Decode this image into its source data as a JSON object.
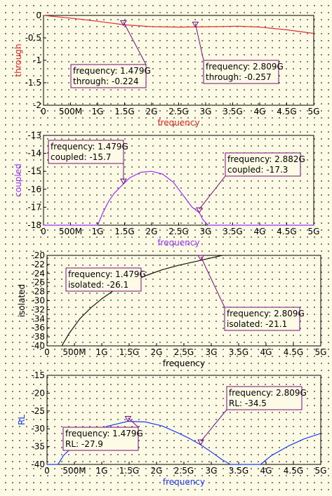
{
  "chart_data": [
    {
      "type": "line",
      "xlabel": "frequency",
      "ylabel": "through",
      "xlabel_color": "#e02020",
      "ylabel_color": "#e02020",
      "series_color": "#e03030",
      "xlim": [
        0,
        5
      ],
      "ylim": [
        -2,
        0
      ],
      "xticks": [
        0,
        0.5,
        1,
        1.5,
        2,
        2.5,
        3,
        3.5,
        4,
        4.5,
        5
      ],
      "xtick_labels": [
        "0",
        "500M",
        "1G",
        "1.5G",
        "2G",
        "2.5G",
        "3G",
        "3.5G",
        "4G",
        "4.5G",
        "5G"
      ],
      "yticks": [
        0,
        -0.5,
        -1,
        -1.5,
        -2
      ],
      "ytick_labels": [
        "0",
        "-0.5",
        "-1",
        "-1.5",
        "-2"
      ],
      "series": [
        {
          "x": [
            0,
            0.5,
            1,
            1.5,
            2,
            2.5,
            2.809,
            3.2,
            3.6,
            4,
            4.5,
            5
          ],
          "y": [
            0,
            -0.06,
            -0.13,
            -0.21,
            -0.25,
            -0.26,
            -0.257,
            -0.25,
            -0.24,
            -0.26,
            -0.32,
            -0.4
          ]
        }
      ],
      "markers": [
        {
          "x": 1.479,
          "y": -0.224,
          "lines": [
            "frequency: 1.479G",
            "through: -0.224"
          ]
        },
        {
          "x": 2.809,
          "y": -0.257,
          "lines": [
            "frequency: 2.809G",
            "through: -0.257"
          ]
        }
      ]
    },
    {
      "type": "line",
      "xlabel": "frequency",
      "ylabel": "coupled",
      "xlabel_color": "#9b30ff",
      "ylabel_color": "#9b30ff",
      "series_color": "#9b30ff",
      "xlim": [
        0,
        5
      ],
      "ylim": [
        -18,
        -13
      ],
      "xticks": [
        0,
        0.5,
        1,
        1.5,
        2,
        2.5,
        3,
        3.5,
        4,
        4.5,
        5
      ],
      "xtick_labels": [
        "0",
        "500M",
        "1G",
        "1.5G",
        "2G",
        "2.5G",
        "3G",
        "3.5G",
        "4G",
        "4.5G",
        "5G"
      ],
      "yticks": [
        -13,
        -14,
        -15,
        -16,
        -17,
        -18
      ],
      "ytick_labels": [
        "-13",
        "-14",
        "-15",
        "-16",
        "-17",
        "-18"
      ],
      "series": [
        {
          "x": [
            0,
            1.0,
            1.1,
            1.2,
            1.3,
            1.479,
            1.6,
            1.8,
            2.0,
            2.2,
            2.4,
            2.6,
            2.75,
            2.882,
            2.95,
            3.05,
            5
          ],
          "y": [
            -18,
            -18,
            -17.3,
            -16.7,
            -16.25,
            -15.7,
            -15.35,
            -15.05,
            -15.0,
            -15.15,
            -15.6,
            -16.4,
            -17.0,
            -17.3,
            -17.7,
            -18,
            -18
          ]
        }
      ],
      "markers": [
        {
          "x": 1.479,
          "y": -15.7,
          "lines": [
            "frequency: 1.479G",
            "coupled: -15.7"
          ]
        },
        {
          "x": 2.882,
          "y": -17.3,
          "lines": [
            "frequency: 2.882G",
            "coupled: -17.3"
          ]
        }
      ]
    },
    {
      "type": "line",
      "xlabel": "frequency",
      "ylabel": "isolated",
      "xlabel_color": "#000000",
      "ylabel_color": "#000000",
      "series_color": "#111111",
      "xlim": [
        0,
        5
      ],
      "ylim": [
        -40,
        -20
      ],
      "xticks": [
        0,
        0.5,
        1,
        1.5,
        2,
        2.5,
        3,
        3.5,
        4,
        4.5,
        5
      ],
      "xtick_labels": [
        "0",
        "500M",
        "1G",
        "1.5G",
        "2G",
        "2.5G",
        "3G",
        "3.5G",
        "4G",
        "4.5G",
        "5G"
      ],
      "yticks": [
        -20,
        -22,
        -24,
        -26,
        -28,
        -30,
        -32,
        -34,
        -36,
        -38,
        -40
      ],
      "ytick_labels": [
        "-20",
        "-22",
        "-24",
        "-26",
        "-28",
        "-30",
        "-32",
        "-34",
        "-36",
        "-38",
        "-40"
      ],
      "series": [
        {
          "x": [
            0.27,
            0.4,
            0.6,
            0.8,
            1.0,
            1.2,
            1.479,
            1.8,
            2.1,
            2.4,
            2.809,
            3.2
          ],
          "y": [
            -40,
            -37.3,
            -34.0,
            -31.6,
            -29.6,
            -27.9,
            -26.1,
            -24.5,
            -23.2,
            -22.2,
            -21.1,
            -20.0
          ]
        }
      ],
      "markers": [
        {
          "x": 1.479,
          "y": -26.1,
          "lines": [
            "frequency: 1.479G",
            "isolated: -26.1"
          ]
        },
        {
          "x": 2.809,
          "y": -21.1,
          "lines": [
            "frequency: 2.809G",
            "isolated: -21.1"
          ]
        }
      ]
    },
    {
      "type": "line",
      "xlabel": "frequency",
      "ylabel": "RL",
      "xlabel_color": "#1a3cff",
      "ylabel_color": "#1a3cff",
      "series_color": "#1a3cff",
      "xlim": [
        0,
        5
      ],
      "ylim": [
        -40,
        -15
      ],
      "xticks": [
        0,
        0.5,
        1,
        1.5,
        2,
        2.5,
        3,
        3.5,
        4,
        4.5,
        5
      ],
      "xtick_labels": [
        "0",
        "500M",
        "1G",
        "1.5G",
        "2G",
        "2.5G",
        "3G",
        "3.5G",
        "4G",
        "4.5G",
        "5G"
      ],
      "yticks": [
        -15,
        -20,
        -25,
        -30,
        -35,
        -40
      ],
      "ytick_labels": [
        "-15",
        "-20",
        "-25",
        "-30",
        "-35",
        "-40"
      ],
      "series": [
        {
          "x": [
            0,
            0.2,
            0.3,
            0.5,
            0.8,
            1.1,
            1.479,
            1.8,
            2.1,
            2.4,
            2.6,
            2.809,
            3.0,
            3.2,
            3.35,
            3.9,
            4.1,
            4.4,
            4.7,
            5
          ],
          "y": [
            -40,
            -40,
            -37.5,
            -34.6,
            -31.6,
            -29.3,
            -27.9,
            -28.1,
            -29.2,
            -31.2,
            -32.7,
            -34.5,
            -36.5,
            -38.7,
            -40,
            -40,
            -37.5,
            -34.9,
            -32.8,
            -31.3
          ]
        }
      ],
      "markers": [
        {
          "x": 1.479,
          "y": -27.9,
          "lines": [
            "frequency: 1.479G",
            "RL: -27.9"
          ]
        },
        {
          "x": 2.809,
          "y": -34.5,
          "lines": [
            "frequency: 2.809G",
            "RL: -34.5"
          ]
        }
      ]
    }
  ]
}
